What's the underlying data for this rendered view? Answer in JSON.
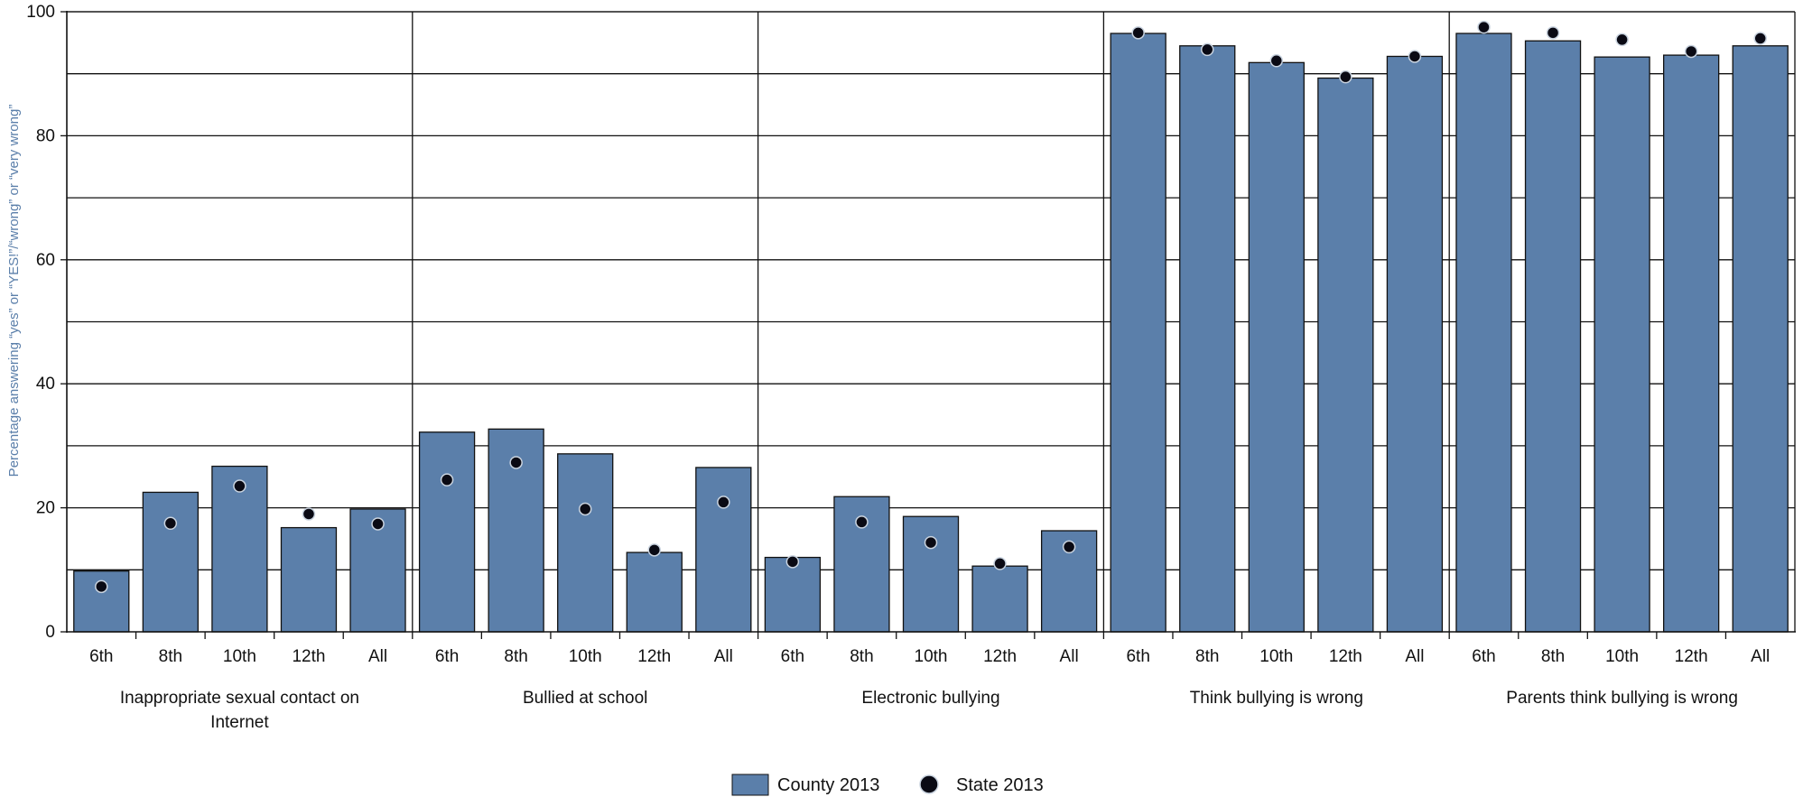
{
  "chart_data": {
    "type": "bar",
    "ylabel": "Percentage answering “yes” or “YES!”/“wrong” or “very wrong”",
    "ylim": [
      0,
      100
    ],
    "yticks": [
      0,
      20,
      40,
      60,
      80,
      100
    ],
    "grid": true,
    "legend_position": "bottom",
    "categories": [
      "6th",
      "8th",
      "10th",
      "12th",
      "All"
    ],
    "groups": [
      {
        "label": "Inappropriate sexual contact on Internet",
        "label_lines": [
          "Inappropriate sexual contact on",
          "Internet"
        ],
        "county": [
          9.8,
          22.5,
          26.7,
          16.8,
          19.8
        ],
        "state": [
          7.3,
          17.5,
          23.5,
          19.0,
          17.4
        ]
      },
      {
        "label": "Bullied at school",
        "label_lines": [
          "Bullied at school"
        ],
        "county": [
          32.2,
          32.7,
          28.7,
          12.8,
          26.5
        ],
        "state": [
          24.5,
          27.3,
          19.8,
          13.2,
          20.9
        ]
      },
      {
        "label": "Electronic bullying",
        "label_lines": [
          "Electronic bullying"
        ],
        "county": [
          12.0,
          21.8,
          18.6,
          10.6,
          16.3
        ],
        "state": [
          11.3,
          17.7,
          14.4,
          11.0,
          13.7
        ]
      },
      {
        "label": "Think bullying is wrong",
        "label_lines": [
          "Think bullying is wrong"
        ],
        "county": [
          96.5,
          94.5,
          91.8,
          89.3,
          92.8
        ],
        "state": [
          96.6,
          93.9,
          92.1,
          89.5,
          92.8
        ]
      },
      {
        "label": "Parents think bullying is wrong",
        "label_lines": [
          "Parents think bullying is wrong"
        ],
        "county": [
          96.5,
          95.3,
          92.7,
          93.0,
          94.5
        ],
        "state": [
          97.5,
          96.6,
          95.5,
          93.6,
          95.7
        ]
      }
    ],
    "series": [
      {
        "name": "County 2013",
        "marker": "bar",
        "color": "#5b7faa"
      },
      {
        "name": "State 2013",
        "marker": "dot",
        "color": "#0a0a14"
      }
    ]
  }
}
